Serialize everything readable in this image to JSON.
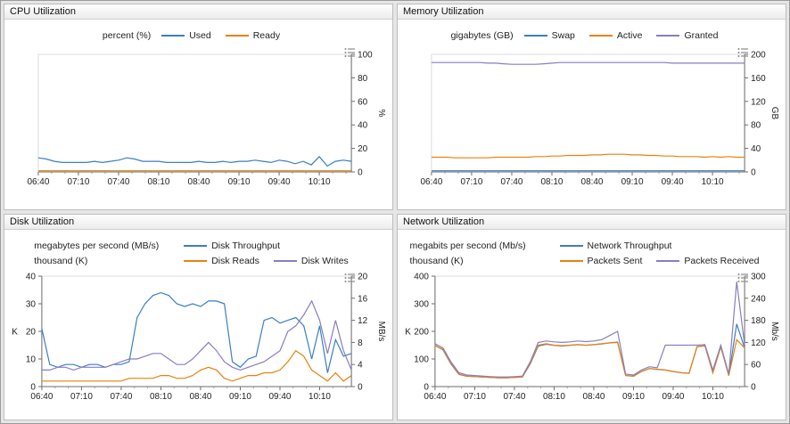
{
  "colors": {
    "blue": "#3b7fc4",
    "orange": "#e8820e",
    "purple": "#8a7cc2"
  },
  "chart_data": [
    {
      "id": "cpu",
      "type": "line",
      "title": "CPU Utilization",
      "x_tick_labels": [
        "06:40",
        "07:10",
        "07:40",
        "08:10",
        "08:40",
        "09:10",
        "09:40",
        "10:10"
      ],
      "x_tick_interval_min": 30,
      "x_span_min": 234,
      "legend_rows": [
        {
          "unit": "percent (%)",
          "entries": [
            {
              "label": "Used",
              "color": "#3b7fc4"
            },
            {
              "label": "Ready",
              "color": "#e8820e"
            }
          ]
        }
      ],
      "axes": {
        "right": {
          "label": "%",
          "min": 0,
          "max": 100,
          "ticks": [
            0,
            20,
            40,
            60,
            80,
            100
          ]
        }
      },
      "series": [
        {
          "name": "Used",
          "axis": "right",
          "color": "#3b7fc4",
          "values": [
            12,
            11,
            9,
            8,
            8,
            8,
            8,
            9,
            8,
            9,
            10,
            12,
            11,
            9,
            9,
            9,
            8,
            8,
            8,
            8,
            9,
            8,
            8,
            9,
            8,
            9,
            9,
            10,
            9,
            8,
            10,
            9,
            7,
            9,
            6,
            13,
            5,
            9,
            10,
            9
          ]
        },
        {
          "name": "Ready",
          "axis": "right",
          "color": "#e8820e",
          "values": [
            1,
            1,
            1,
            1,
            1,
            1,
            1,
            1,
            1,
            1,
            1,
            1,
            1,
            1,
            1,
            1,
            1,
            1,
            1,
            1,
            1,
            1,
            1,
            1,
            1,
            1,
            1,
            1,
            1,
            1,
            1,
            1,
            1,
            1,
            1,
            1,
            1,
            1,
            1,
            1
          ]
        }
      ]
    },
    {
      "id": "memory",
      "type": "line",
      "title": "Memory Utilization",
      "x_tick_labels": [
        "06:40",
        "07:10",
        "07:40",
        "08:10",
        "08:40",
        "09:10",
        "09:40",
        "10:10"
      ],
      "x_tick_interval_min": 30,
      "x_span_min": 234,
      "legend_rows": [
        {
          "unit": "gigabytes (GB)",
          "entries": [
            {
              "label": "Swap",
              "color": "#3b7fc4"
            },
            {
              "label": "Active",
              "color": "#e8820e"
            },
            {
              "label": "Granted",
              "color": "#8a7cc2"
            }
          ]
        }
      ],
      "axes": {
        "right": {
          "label": "GB",
          "min": 0,
          "max": 200,
          "ticks": [
            0,
            40,
            80,
            120,
            160,
            200
          ]
        }
      },
      "series": [
        {
          "name": "Swap",
          "axis": "right",
          "color": "#3b7fc4",
          "values": [
            2,
            2,
            2,
            2,
            2,
            2,
            2,
            2,
            2,
            2,
            2,
            2,
            2,
            2,
            2,
            2,
            2,
            2,
            2,
            2,
            2,
            2,
            2,
            2,
            2,
            2,
            2,
            2,
            2,
            2,
            2,
            2,
            2,
            2,
            2,
            2,
            2,
            2,
            2,
            2
          ]
        },
        {
          "name": "Active",
          "axis": "right",
          "color": "#e8820e",
          "values": [
            25,
            25,
            25,
            24,
            24,
            24,
            24,
            24,
            25,
            25,
            25,
            25,
            25,
            26,
            26,
            27,
            27,
            28,
            28,
            28,
            29,
            29,
            30,
            30,
            30,
            29,
            29,
            28,
            28,
            27,
            27,
            26,
            26,
            26,
            25,
            26,
            25,
            26,
            25,
            25
          ]
        },
        {
          "name": "Granted",
          "axis": "right",
          "color": "#8a7cc2",
          "values": [
            186,
            186,
            186,
            186,
            186,
            186,
            186,
            185,
            185,
            184,
            183,
            183,
            183,
            183,
            184,
            185,
            186,
            186,
            186,
            186,
            186,
            186,
            186,
            186,
            186,
            186,
            186,
            186,
            186,
            186,
            185,
            185,
            185,
            185,
            185,
            185,
            185,
            185,
            185,
            185
          ]
        }
      ]
    },
    {
      "id": "disk",
      "type": "line",
      "title": "Disk Utilization",
      "x_tick_labels": [
        "06:40",
        "07:10",
        "07:40",
        "08:10",
        "08:40",
        "09:10",
        "09:40",
        "10:10"
      ],
      "x_tick_interval_min": 30,
      "x_span_min": 234,
      "legend_rows": [
        {
          "unit": "megabytes per second (MB/s)",
          "entries": [
            {
              "label": "Disk Throughput",
              "color": "#3b7fc4"
            }
          ]
        },
        {
          "unit": "thousand (K)",
          "entries": [
            {
              "label": "Disk Reads",
              "color": "#e8820e"
            },
            {
              "label": "Disk Writes",
              "color": "#8a7cc2"
            }
          ]
        }
      ],
      "axes": {
        "left": {
          "label": "K",
          "min": 0,
          "max": 40,
          "ticks": [
            0,
            10,
            20,
            30,
            40
          ]
        },
        "right": {
          "label": "MB/s",
          "min": 0,
          "max": 20,
          "ticks": [
            0,
            4,
            8,
            12,
            16,
            20
          ]
        }
      },
      "series": [
        {
          "name": "Disk Throughput",
          "axis": "right",
          "color": "#3b7fc4",
          "values": [
            10.5,
            4,
            3.5,
            4,
            4,
            3.5,
            4,
            4,
            3.5,
            4,
            4,
            4.5,
            12.5,
            15,
            16.5,
            17,
            16.5,
            15,
            14.5,
            15,
            14.5,
            15.5,
            15.5,
            15,
            4.5,
            3.5,
            5,
            5.5,
            12,
            12.5,
            11.5,
            12,
            12.5,
            11,
            5,
            11,
            2.5,
            8.5,
            5.5,
            6
          ]
        },
        {
          "name": "Disk Reads",
          "axis": "left",
          "color": "#e8820e",
          "values": [
            2,
            2,
            2,
            2,
            2,
            2,
            2,
            2,
            2,
            2,
            2,
            3,
            3,
            3,
            3,
            4,
            4,
            3,
            3,
            4,
            6,
            7,
            6,
            3,
            2,
            3,
            4,
            4,
            5,
            5,
            6,
            9,
            13,
            11,
            6,
            4,
            2,
            5,
            2,
            4
          ]
        },
        {
          "name": "Disk Writes",
          "axis": "left",
          "color": "#8a7cc2",
          "values": [
            6,
            6,
            7,
            7,
            6,
            7,
            7,
            7,
            7,
            8,
            9,
            10,
            10,
            11,
            12,
            12,
            10,
            8,
            8,
            10,
            13,
            16,
            13,
            9,
            7,
            6,
            7,
            8,
            9,
            11,
            13,
            20,
            22,
            26,
            31,
            24,
            12,
            24,
            13,
            6
          ]
        }
      ]
    },
    {
      "id": "network",
      "type": "line",
      "title": "Network Utilization",
      "x_tick_labels": [
        "06:40",
        "07:10",
        "07:40",
        "08:10",
        "08:40",
        "09:10",
        "09:40",
        "10:10"
      ],
      "x_tick_interval_min": 30,
      "x_span_min": 234,
      "legend_rows": [
        {
          "unit": "megabits per second (Mb/s)",
          "entries": [
            {
              "label": "Network Throughput",
              "color": "#3b7fc4"
            }
          ]
        },
        {
          "unit": "thousand (K)",
          "entries": [
            {
              "label": "Packets Sent",
              "color": "#e8820e"
            },
            {
              "label": "Packets Received",
              "color": "#8a7cc2"
            }
          ]
        }
      ],
      "axes": {
        "left": {
          "label": "K",
          "min": 0,
          "max": 400,
          "ticks": [
            0,
            100,
            200,
            300,
            400
          ]
        },
        "right": {
          "label": "Mb/s",
          "min": 0,
          "max": 300,
          "ticks": [
            0,
            60,
            120,
            180,
            240,
            300
          ]
        }
      },
      "series": [
        {
          "name": "Network Throughput",
          "axis": "right",
          "color": "#3b7fc4",
          "values": [
            112,
            100,
            62,
            33,
            28,
            27,
            26,
            25,
            24,
            24,
            25,
            26,
            62,
            110,
            115,
            112,
            110,
            112,
            114,
            112,
            114,
            116,
            119,
            121,
            30,
            28,
            41,
            49,
            47,
            45,
            41,
            38,
            36,
            108,
            111,
            38,
            108,
            30,
            170,
            105
          ]
        },
        {
          "name": "Packets Sent",
          "axis": "left",
          "color": "#e8820e",
          "values": [
            148,
            135,
            85,
            45,
            38,
            36,
            35,
            33,
            32,
            32,
            33,
            35,
            85,
            150,
            155,
            150,
            148,
            150,
            152,
            150,
            152,
            155,
            158,
            160,
            40,
            38,
            55,
            65,
            62,
            60,
            55,
            50,
            48,
            145,
            148,
            50,
            145,
            40,
            170,
            140
          ]
        },
        {
          "name": "Packets Received",
          "axis": "left",
          "color": "#8a7cc2",
          "values": [
            155,
            140,
            90,
            50,
            42,
            40,
            38,
            36,
            35,
            35,
            36,
            38,
            90,
            160,
            165,
            162,
            160,
            162,
            165,
            163,
            165,
            170,
            185,
            200,
            45,
            42,
            60,
            72,
            68,
            150,
            150,
            150,
            150,
            150,
            152,
            60,
            150,
            45,
            380,
            150
          ]
        }
      ]
    }
  ]
}
